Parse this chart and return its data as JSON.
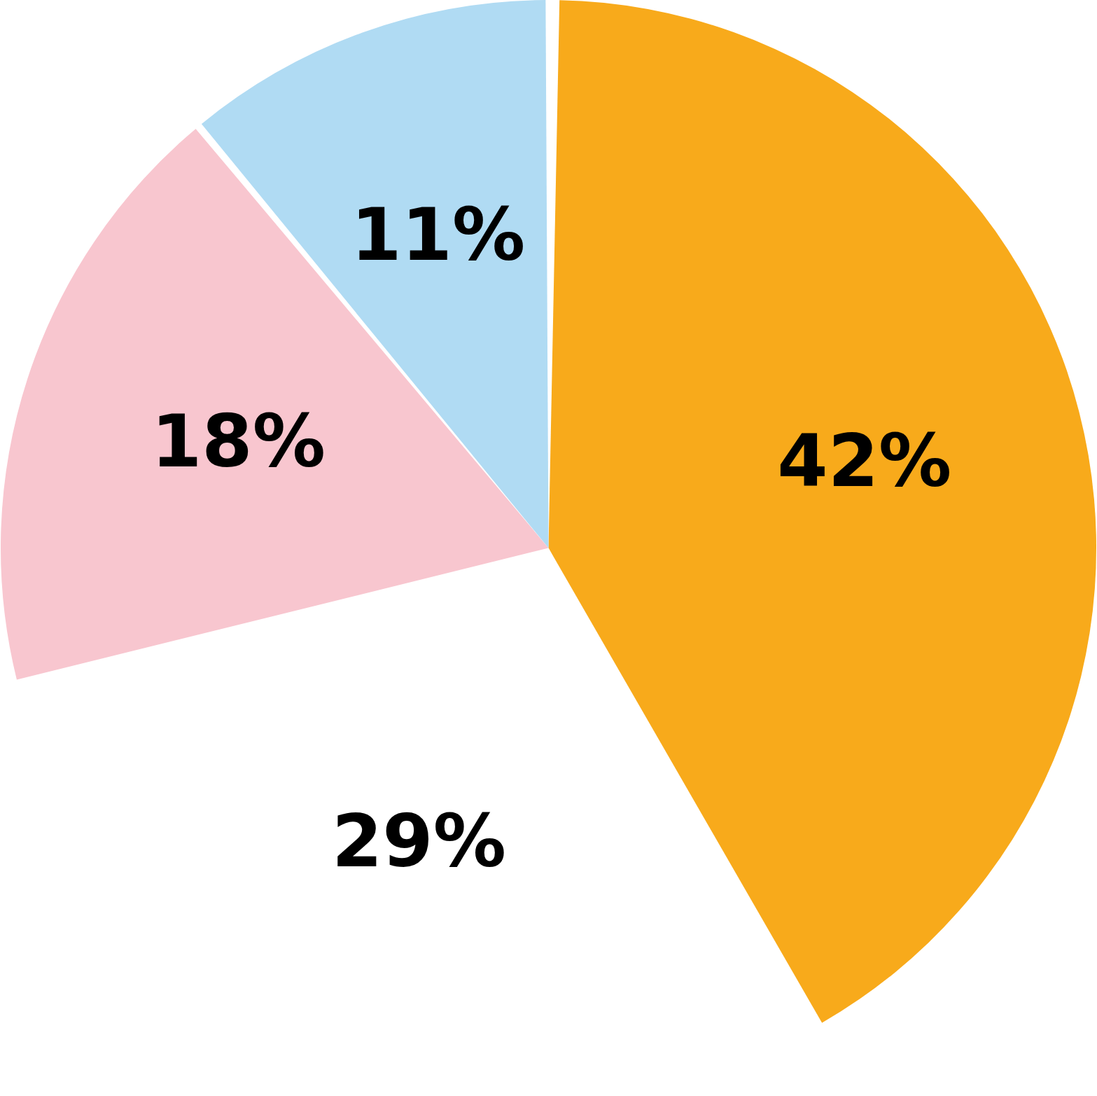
{
  "chart_data": {
    "type": "pie",
    "categories": [
      null,
      null,
      null,
      null
    ],
    "values": [
      42,
      29,
      18,
      11
    ],
    "colors": [
      "#f8aa1b",
      "#ffffff",
      "#f8c6cf",
      "#b0dbf3"
    ],
    "value_labels": [
      "42%",
      "29%",
      "18%",
      "11%"
    ],
    "legend": false
  }
}
